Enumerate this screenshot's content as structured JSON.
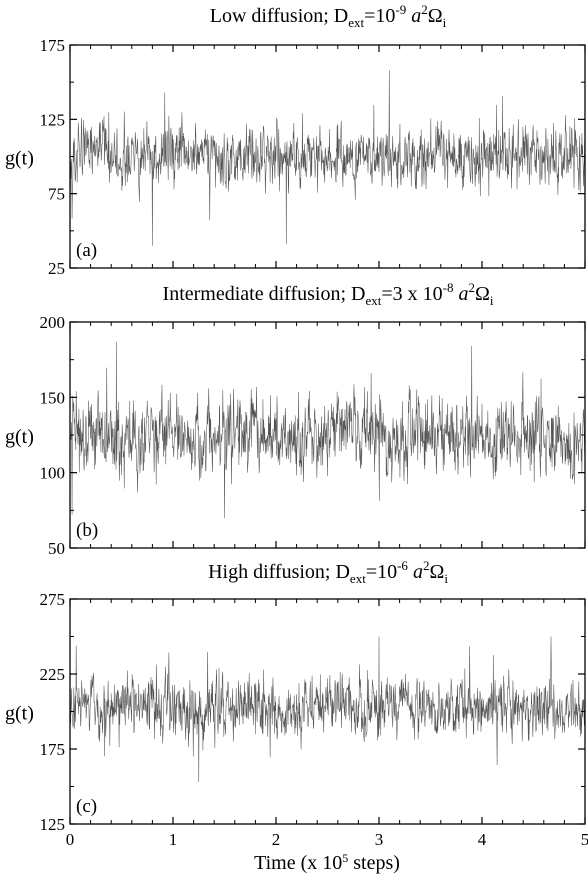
{
  "figure": {
    "xlabel": "Time (x 10",
    "xlabel_sup": "5",
    "xlabel_tail": " steps)",
    "line_color": "#555555",
    "frame_color": "#000000"
  },
  "chart_data": [
    {
      "type": "line",
      "tag": "(a)",
      "title": {
        "prefix": "Low diffusion; D",
        "sub": "ext",
        "mid": "=10",
        "sup": "-9",
        "a": "a",
        "a_sup": "2",
        "omega": "Ω",
        "omega_sub": "i"
      },
      "ylabel": "g(t)",
      "ylim": [
        25,
        175
      ],
      "yticks": [
        25,
        75,
        125,
        175
      ],
      "xlim": [
        0,
        5
      ],
      "xticks": [
        0,
        1,
        2,
        3,
        4,
        5
      ],
      "show_xtick_labels": false,
      "series": [
        {
          "baseline": 100,
          "noise": 14,
          "spike_max": 160,
          "spike_min": 40,
          "peaks": [
            [
              3.1,
              158
            ],
            [
              2.1,
              41
            ],
            [
              0.8,
              40
            ],
            [
              0.92,
              143
            ]
          ]
        }
      ]
    },
    {
      "type": "line",
      "tag": "(b)",
      "title": {
        "prefix": "Intermediate diffusion; D",
        "sub": "ext",
        "mid": "=3 x 10",
        "sup": "-8",
        "a": "a",
        "a_sup": "2",
        "omega": "Ω",
        "omega_sub": "i"
      },
      "ylabel": "g(t)",
      "ylim": [
        50,
        200
      ],
      "yticks": [
        50,
        100,
        150,
        200
      ],
      "xlim": [
        0,
        5
      ],
      "xticks": [
        0,
        1,
        2,
        3,
        4,
        5
      ],
      "show_xtick_labels": false,
      "series": [
        {
          "baseline": 125,
          "noise": 17,
          "spike_max": 187,
          "spike_min": 70,
          "peaks": [
            [
              0.45,
              187
            ],
            [
              3.9,
              184
            ],
            [
              1.5,
              70
            ],
            [
              0.02,
              72
            ]
          ]
        }
      ]
    },
    {
      "type": "line",
      "tag": "(c)",
      "title": {
        "prefix": "High diffusion; D",
        "sub": "ext",
        "mid": "=10",
        "sup": "-6",
        "a": "a",
        "a_sup": "2",
        "omega": "Ω",
        "omega_sub": "i"
      },
      "ylabel": "g(t)",
      "ylim": [
        125,
        275
      ],
      "yticks": [
        125,
        175,
        225,
        275
      ],
      "xlim": [
        0,
        5
      ],
      "xticks": [
        0,
        1,
        2,
        3,
        4,
        5
      ],
      "show_xtick_labels": true,
      "series": [
        {
          "baseline": 203,
          "noise": 14,
          "spike_max": 250,
          "spike_min": 153,
          "peaks": [
            [
              3.0,
              250
            ],
            [
              1.25,
              153
            ],
            [
              0.06,
              244
            ]
          ]
        }
      ]
    }
  ]
}
